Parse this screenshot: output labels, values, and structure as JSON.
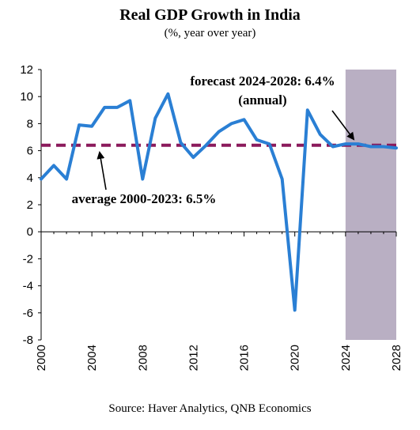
{
  "title": "Real GDP Growth in India",
  "subtitle": "(%, year over year)",
  "source": "Source: Haver Analytics, QNB Economics",
  "colors": {
    "line": "#2a7fd4",
    "average": "#8b1a5c",
    "forecast_shade": "#b9afc3",
    "axis": "#000000"
  },
  "chart_data": {
    "type": "line",
    "title": "Real GDP Growth in India",
    "subtitle": "(%, year over year)",
    "xlabel": "",
    "ylabel": "",
    "xlim": [
      2000,
      2028
    ],
    "ylim": [
      -8,
      12
    ],
    "x_ticks": [
      2000,
      2004,
      2008,
      2012,
      2016,
      2020,
      2024,
      2028
    ],
    "y_ticks": [
      -8,
      -6,
      -4,
      -2,
      0,
      2,
      4,
      6,
      8,
      10,
      12
    ],
    "grid": false,
    "forecast_region": [
      2024,
      2028
    ],
    "series": [
      {
        "x": [
          2000,
          2001,
          2002,
          2003,
          2004,
          2005,
          2006,
          2007,
          2008,
          2009,
          2010,
          2011,
          2012,
          2013,
          2014,
          2015,
          2016,
          2017,
          2018,
          2019,
          2020,
          2021,
          2022,
          2023,
          2024,
          2025,
          2026,
          2027,
          2028
        ],
        "values": [
          3.9,
          4.9,
          3.9,
          7.9,
          7.8,
          9.2,
          9.2,
          9.7,
          3.9,
          8.4,
          10.2,
          6.6,
          5.5,
          6.4,
          7.4,
          8.0,
          8.3,
          6.8,
          6.5,
          3.9,
          -5.8,
          9.0,
          7.2,
          6.3,
          6.5,
          6.5,
          6.3,
          6.3,
          6.2
        ]
      }
    ],
    "reference_lines": [
      {
        "value": 6.4,
        "style": "dashed"
      }
    ],
    "annotations": [
      {
        "text_line1": "forecast 2024-2028: 6.4%",
        "text_line2": "(annual)"
      },
      {
        "text": "average 2000-2023: 6.5%"
      }
    ]
  }
}
